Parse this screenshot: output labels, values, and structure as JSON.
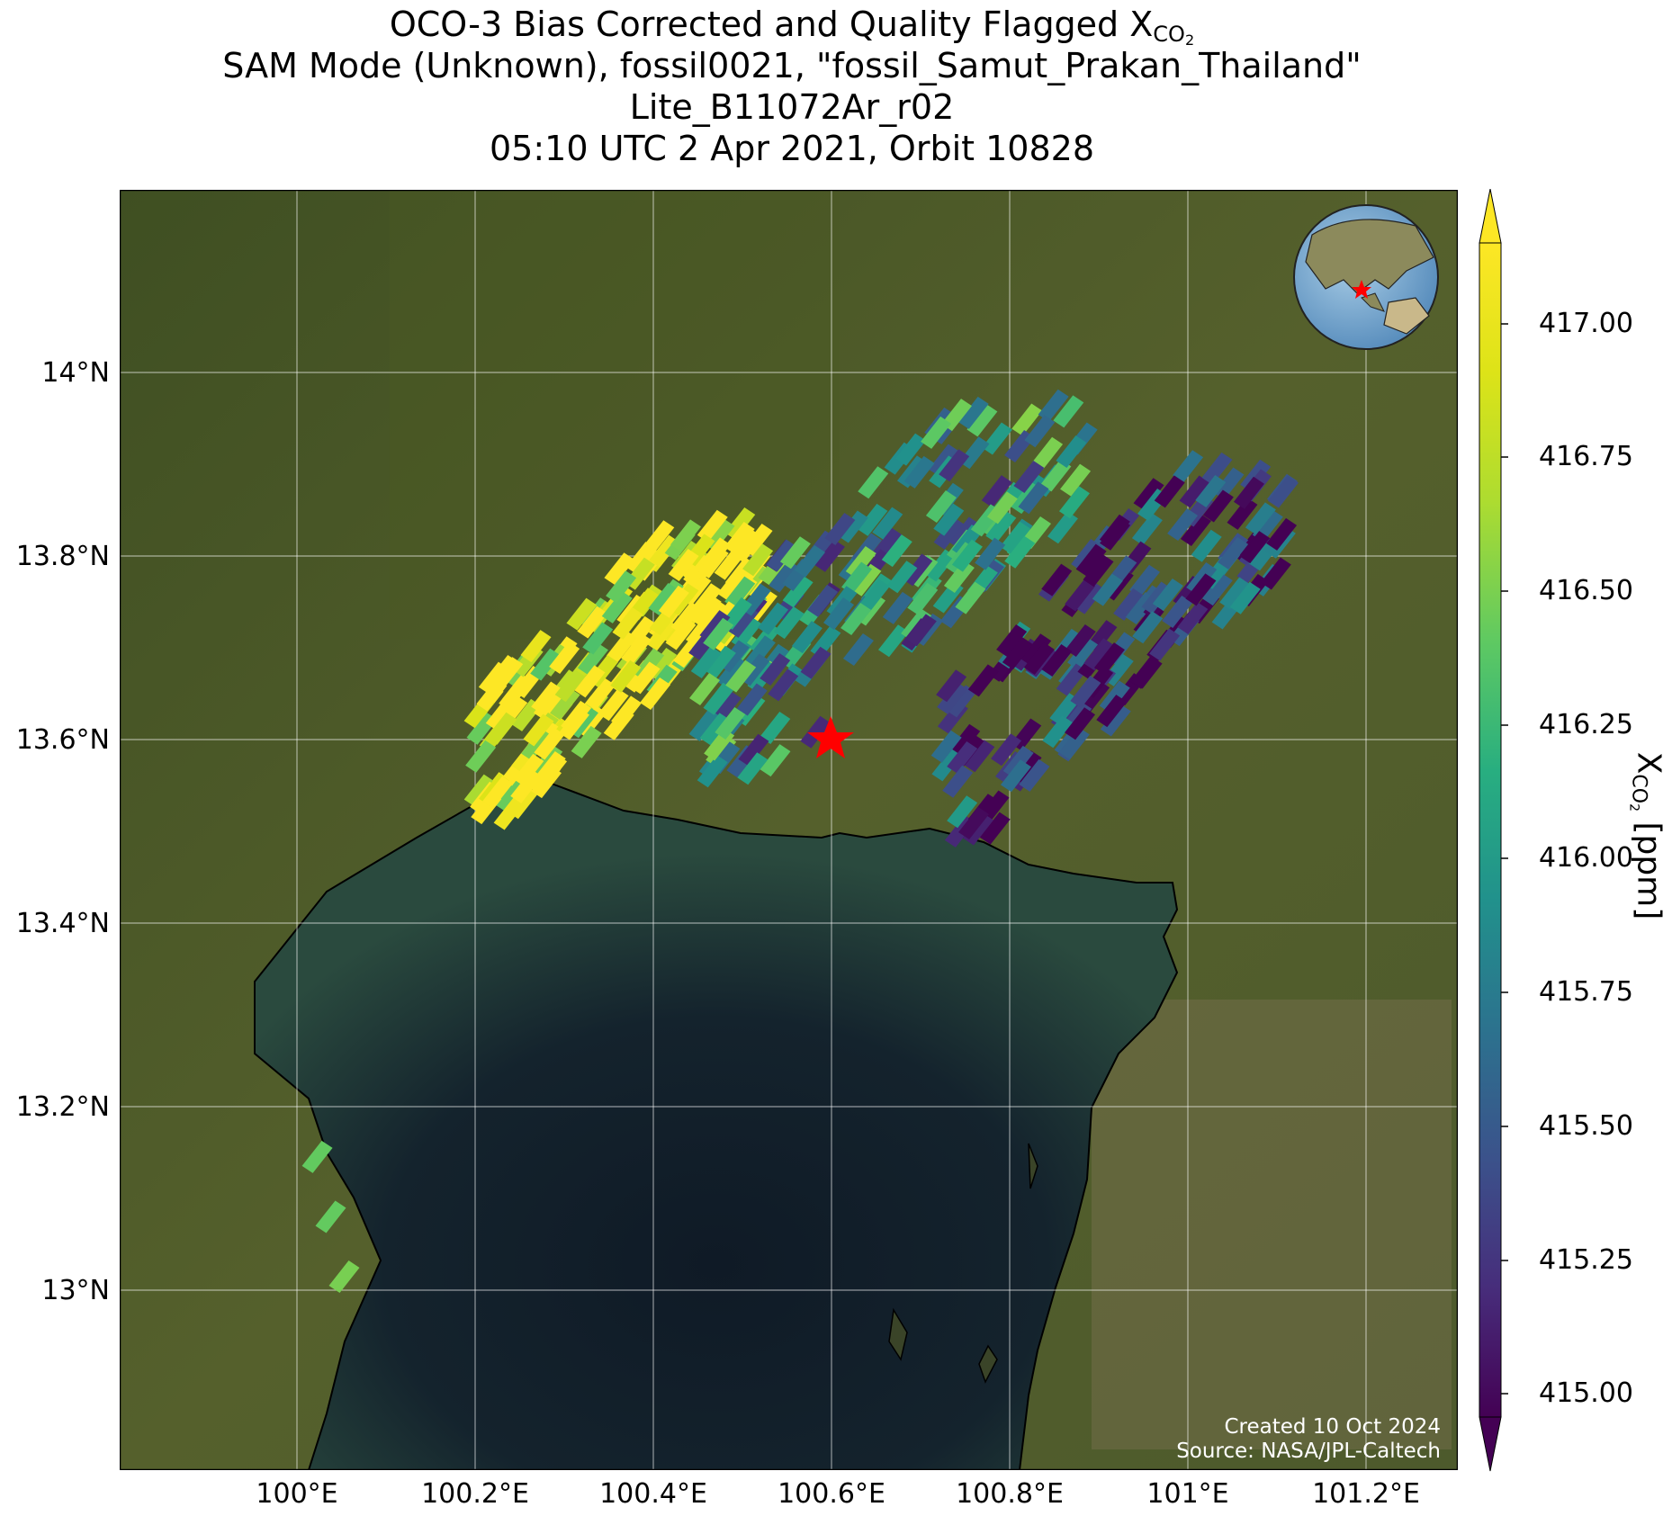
{
  "title": {
    "line1_prefix": "OCO-3 Bias Corrected and Quality Flagged X",
    "line1_sub": "CO",
    "line1_sub2": "2",
    "line2": "SAM Mode (Unknown), fossil0021, \"fossil_Samut_Prakan_Thailand\"",
    "line3": "Lite_B11072Ar_r02",
    "line4": "05:10 UTC 2 Apr 2021, Orbit 10828"
  },
  "credit": {
    "created": "Created 10 Oct 2024",
    "source": "Source: NASA/JPL-Caltech"
  },
  "map": {
    "lon_range": [
      99.8,
      101.29
    ],
    "lat_range": [
      12.81,
      14.2
    ],
    "lat_ticks": [
      "14°N",
      "13.8°N",
      "13.6°N",
      "13.4°N",
      "13.2°N",
      "13°N"
    ],
    "lon_ticks": [
      "100°E",
      "100.2°E",
      "100.4°E",
      "100.6°E",
      "100.8°E",
      "101°E",
      "101.2°E"
    ],
    "target_marker": {
      "lon": 100.595,
      "lat": 13.6,
      "symbol": "red-star"
    },
    "inset_globe": {
      "marker": "red-star",
      "region": "Southeast Asia"
    },
    "colors": {
      "land": "#4f5b2c",
      "sea": "#14222e",
      "coast": "#000000",
      "grid": "#ffffff",
      "marker": "#ff0000"
    }
  },
  "chart_data": {
    "type": "heatmap",
    "variable": "XCO2",
    "units": "ppm",
    "colormap": "viridis",
    "vmin": 415.0,
    "vmax": 417.0,
    "extend": "both",
    "footprint_swaths": [
      {
        "region": "western swath",
        "lon": [
          100.2,
          100.52
        ],
        "lat": [
          13.52,
          13.84
        ],
        "typical_xco2": 416.9
      },
      {
        "region": "central swath",
        "lon": [
          100.45,
          100.88
        ],
        "lat": [
          13.56,
          13.97
        ],
        "typical_xco2": 415.8
      },
      {
        "region": "eastern swath",
        "lon": [
          100.72,
          101.1
        ],
        "lat": [
          13.5,
          13.9
        ],
        "typical_xco2": 415.3
      },
      {
        "region": "southern isolated",
        "lon": [
          100.02,
          100.05
        ],
        "lat": [
          13.02,
          13.15
        ],
        "typical_xco2": 416.6
      }
    ]
  },
  "colorbar": {
    "ticks": [
      "415.00",
      "415.25",
      "415.50",
      "415.75",
      "416.00",
      "416.25",
      "416.50",
      "416.75",
      "417.00"
    ],
    "label_prefix": "X",
    "label_sub": "CO",
    "label_sub2": "2",
    "label_suffix": " [ppm]"
  }
}
